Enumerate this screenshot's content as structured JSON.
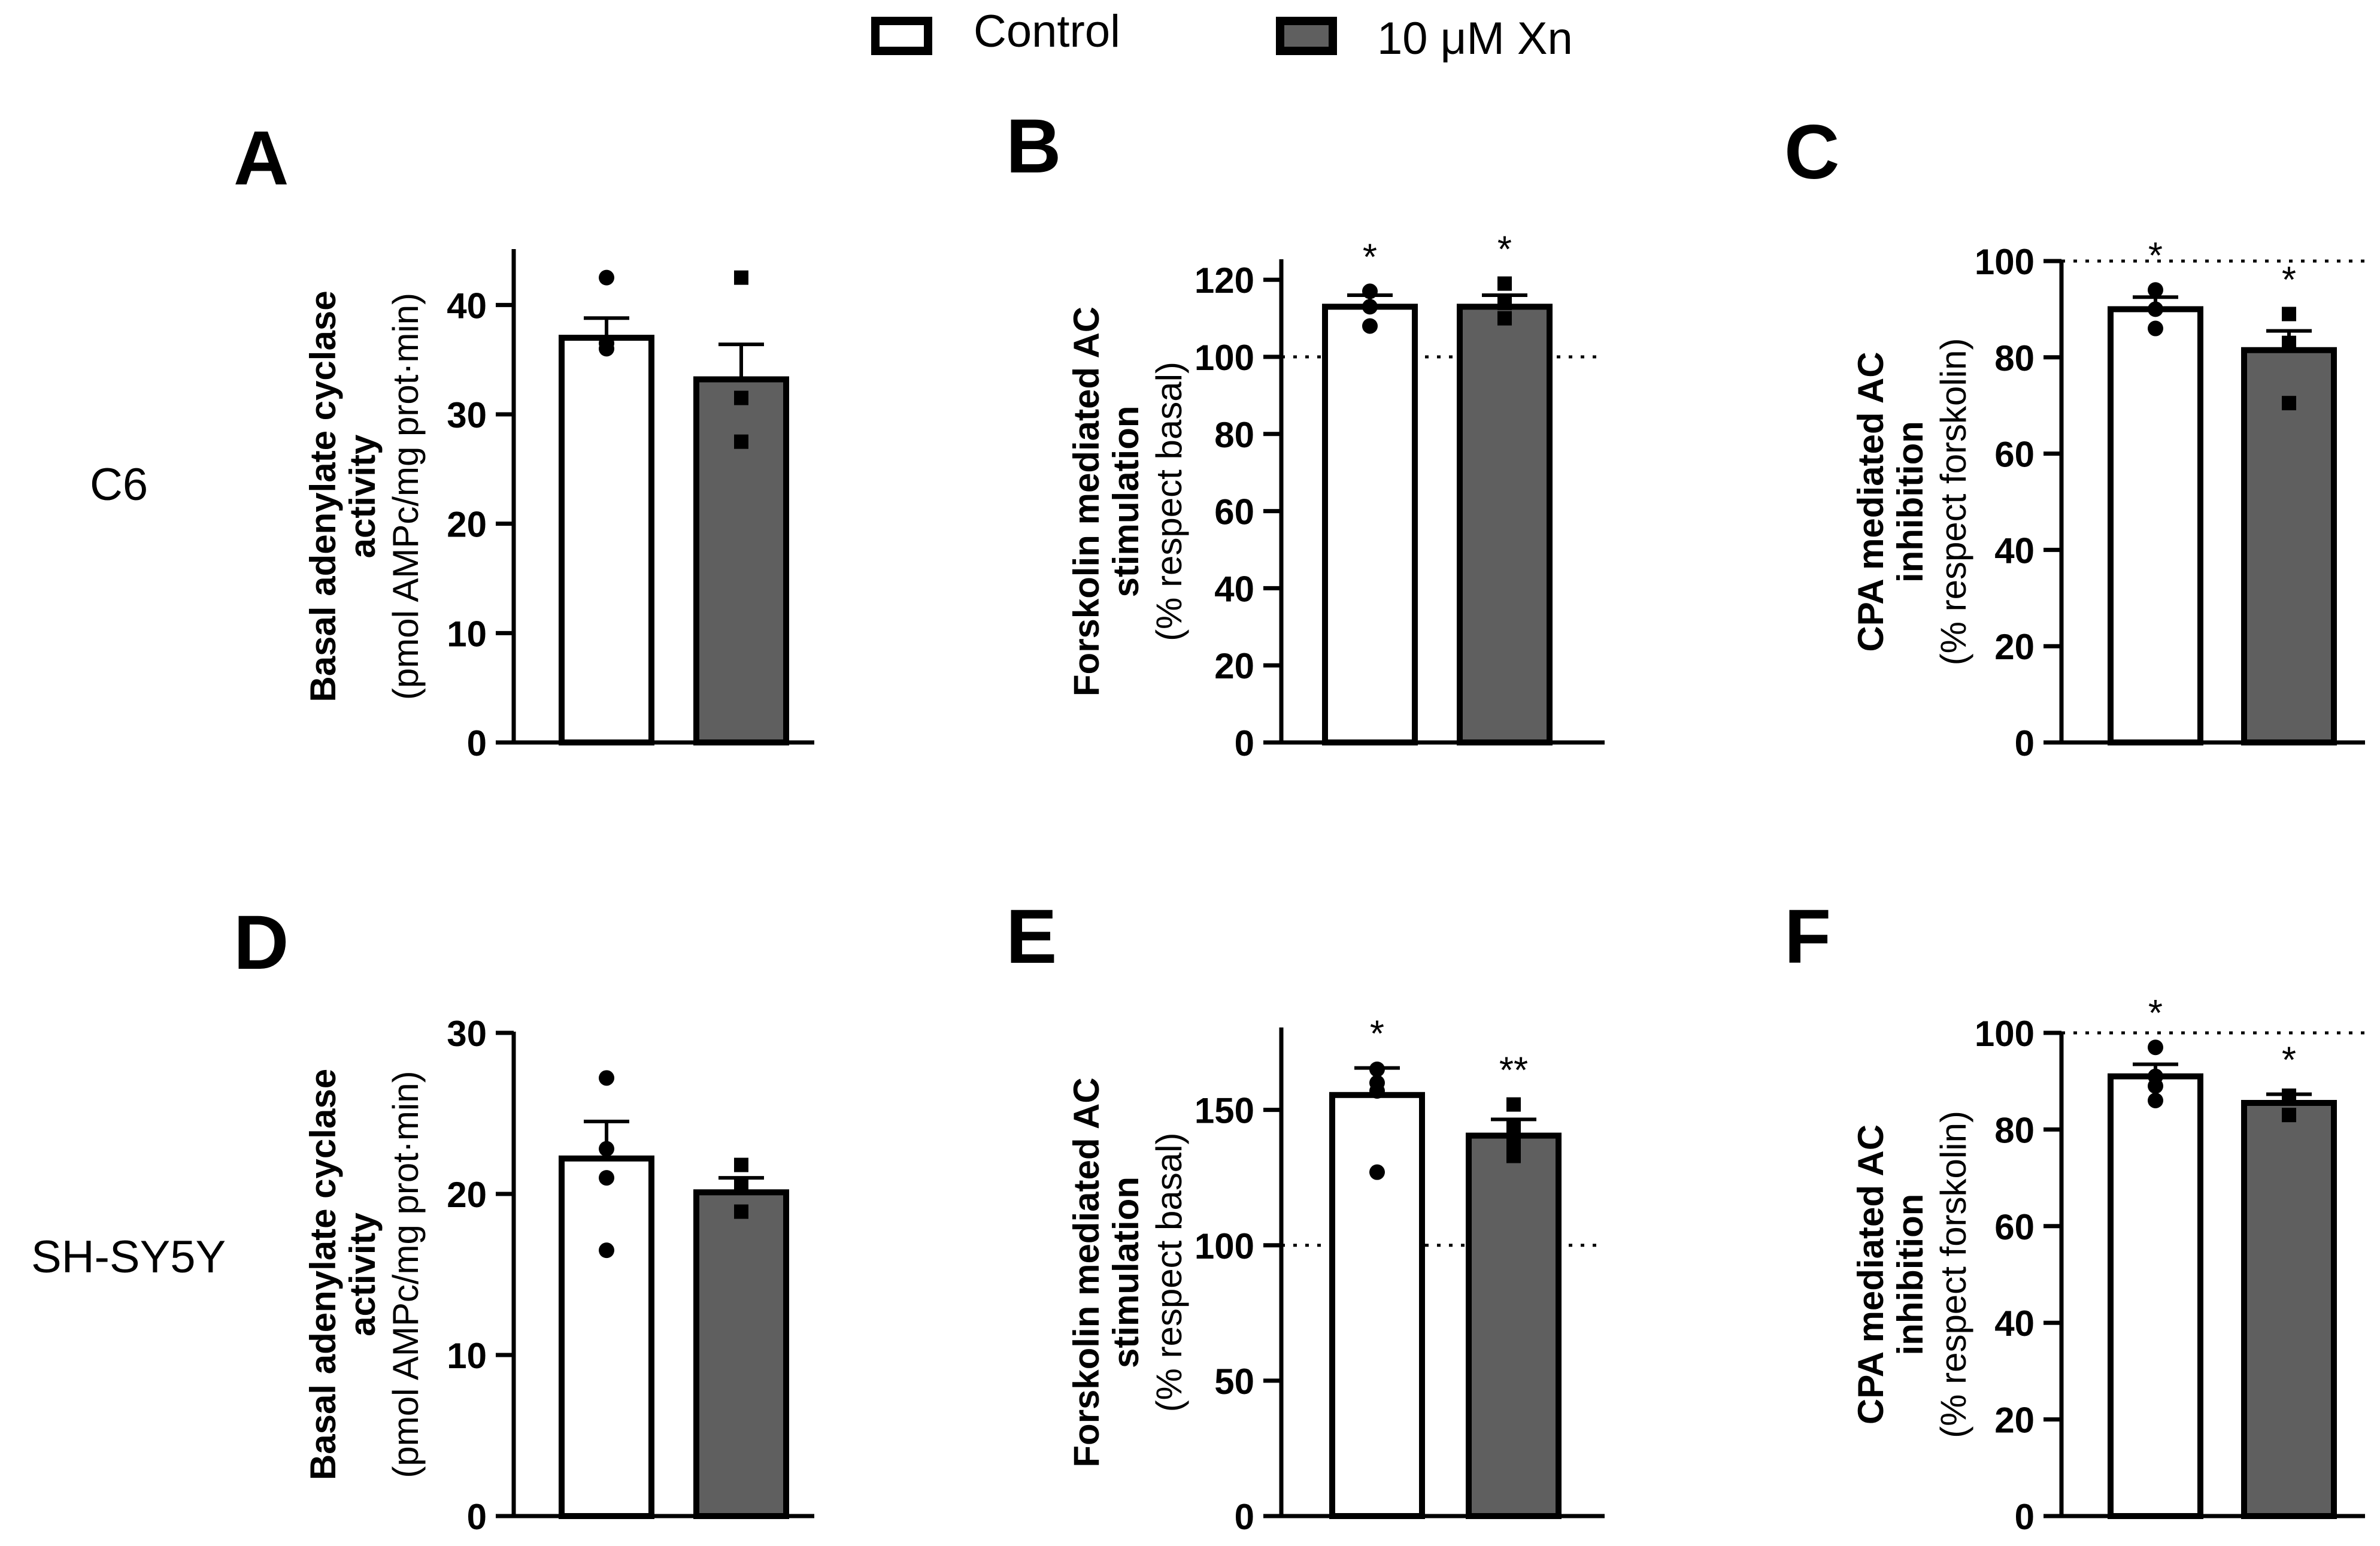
{
  "legend": {
    "items": [
      {
        "label": "Control",
        "fill": "#ffffff"
      },
      {
        "label": "10 μM Xn",
        "fill": "#5f5f5f"
      }
    ]
  },
  "row_labels": {
    "row1": "C6",
    "row2": "SH-SY5Y"
  },
  "colors": {
    "control_fill": "#ffffff",
    "xn_fill": "#5f5f5f",
    "stroke": "#000000"
  },
  "chart_data": [
    {
      "panel": "A",
      "type": "bar",
      "row": 1,
      "ylabel_bold_lines": [
        "Basal adenylate cyclase",
        "activity"
      ],
      "ylabel_unit": "(pmol AMPc/mg prot·min)",
      "ylim": [
        0,
        45
      ],
      "ticks": [
        0,
        10,
        20,
        30,
        40
      ],
      "series": [
        {
          "name": "Control",
          "value": 37,
          "sem": 1.8,
          "marker": "circle",
          "points": [
            42.5,
            36.0,
            36.5
          ],
          "sig": ""
        },
        {
          "name": "10 μM Xn",
          "value": 33.2,
          "sem": 3.2,
          "marker": "square",
          "points": [
            42.5,
            31.5,
            27.5
          ],
          "sig": ""
        }
      ]
    },
    {
      "panel": "B",
      "type": "bar",
      "row": 1,
      "ylabel_bold_lines": [
        "Forskolin mediated AC",
        "stimulation"
      ],
      "ylabel_unit": "(% respect basal)",
      "ylim": [
        0,
        125
      ],
      "ticks": [
        0,
        20,
        40,
        60,
        80,
        100,
        120
      ],
      "ref_line": 100,
      "series": [
        {
          "name": "Control",
          "value": 113,
          "sem": 3,
          "marker": "circle",
          "points": [
            117,
            113,
            108
          ],
          "sig": "*"
        },
        {
          "name": "10 μM Xn",
          "value": 113,
          "sem": 3,
          "marker": "square",
          "points": [
            119,
            114,
            110
          ],
          "sig": "*"
        }
      ]
    },
    {
      "panel": "C",
      "type": "bar",
      "row": 1,
      "ylabel_bold_lines": [
        "CPA mediated AC",
        "inhibition"
      ],
      "ylabel_unit": "(% respect forskolin)",
      "ylim": [
        0,
        100
      ],
      "ticks": [
        0,
        20,
        40,
        60,
        80,
        100
      ],
      "ref_line": 100,
      "series": [
        {
          "name": "Control",
          "value": 90,
          "sem": 2.5,
          "marker": "circle",
          "points": [
            94,
            90,
            86
          ],
          "sig": "*"
        },
        {
          "name": "10 μM Xn",
          "value": 81.5,
          "sem": 4,
          "marker": "square",
          "points": [
            89,
            83,
            70.5
          ],
          "sig": "*"
        }
      ]
    },
    {
      "panel": "D",
      "type": "bar",
      "row": 2,
      "ylabel_bold_lines": [
        "Basal adenylate cyclase",
        "activity"
      ],
      "ylabel_unit": "(pmol AMPc/mg prot·min)",
      "ylim": [
        0,
        30
      ],
      "ticks": [
        0,
        10,
        20,
        30
      ],
      "series": [
        {
          "name": "Control",
          "value": 22.2,
          "sem": 2.3,
          "marker": "circle",
          "points": [
            27.2,
            22.8,
            21.0,
            16.5
          ],
          "sig": ""
        },
        {
          "name": "10 μM Xn",
          "value": 20.1,
          "sem": 0.9,
          "marker": "square",
          "points": [
            21.8,
            20.5,
            18.9
          ],
          "sig": ""
        }
      ]
    },
    {
      "panel": "E",
      "type": "bar",
      "row": 2,
      "ylabel_bold_lines": [
        "Forskolin mediated AC",
        "stimulation"
      ],
      "ylabel_unit": "(% respect basal)",
      "ylim": [
        0,
        180
      ],
      "ticks": [
        0,
        50,
        100,
        150
      ],
      "ref_line": 100,
      "series": [
        {
          "name": "Control",
          "value": 155.5,
          "sem": 10,
          "marker": "circle",
          "points": [
            165,
            160,
            157,
            127
          ],
          "sig": "*"
        },
        {
          "name": "10 μM Xn",
          "value": 140.5,
          "sem": 6,
          "marker": "square",
          "points": [
            152,
            144,
            138,
            133
          ],
          "sig": "**"
        }
      ]
    },
    {
      "panel": "F",
      "type": "bar",
      "row": 2,
      "ylabel_bold_lines": [
        "CPA mediated AC",
        "inhibition"
      ],
      "ylabel_unit": "(% respect forskolin)",
      "ylim": [
        0,
        100
      ],
      "ticks": [
        0,
        20,
        40,
        60,
        80,
        100
      ],
      "ref_line": 100,
      "series": [
        {
          "name": "Control",
          "value": 91,
          "sem": 2.5,
          "marker": "circle",
          "points": [
            97,
            91,
            89,
            86
          ],
          "sig": "*"
        },
        {
          "name": "10 μM Xn",
          "value": 85.5,
          "sem": 1.8,
          "marker": "square",
          "points": [
            87,
            83
          ],
          "sig": "*"
        }
      ]
    }
  ]
}
